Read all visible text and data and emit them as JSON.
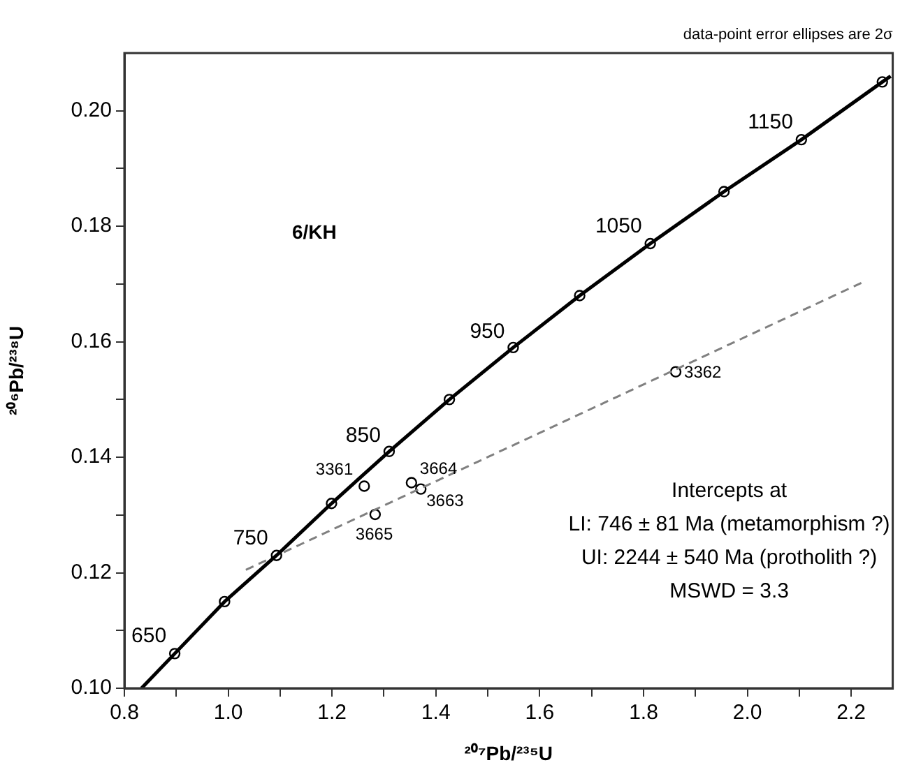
{
  "chart_data": {
    "type": "line",
    "xlabel": "²⁰⁷Pb/²³⁵U",
    "ylabel": "²⁰⁶Pb/²³⁸U",
    "xlim": [
      0.8,
      2.28
    ],
    "ylim": [
      0.1,
      0.21
    ],
    "xticks": [
      {
        "value": 0.8,
        "label": "0.8"
      },
      {
        "value": 0.9,
        "label": null
      },
      {
        "value": 1.0,
        "label": "1.0"
      },
      {
        "value": 1.1,
        "label": null
      },
      {
        "value": 1.2,
        "label": "1.2"
      },
      {
        "value": 1.3,
        "label": null
      },
      {
        "value": 1.4,
        "label": "1.4"
      },
      {
        "value": 1.5,
        "label": null
      },
      {
        "value": 1.6,
        "label": "1.6"
      },
      {
        "value": 1.7,
        "label": null
      },
      {
        "value": 1.8,
        "label": "1.8"
      },
      {
        "value": 1.9,
        "label": null
      },
      {
        "value": 2.0,
        "label": "2.0"
      },
      {
        "value": 2.1,
        "label": null
      },
      {
        "value": 2.2,
        "label": "2.2"
      }
    ],
    "yticks": [
      {
        "value": 0.1,
        "label": "0.10"
      },
      {
        "value": 0.11,
        "label": null
      },
      {
        "value": 0.12,
        "label": "0.12"
      },
      {
        "value": 0.13,
        "label": null
      },
      {
        "value": 0.14,
        "label": "0.14"
      },
      {
        "value": 0.15,
        "label": null
      },
      {
        "value": 0.16,
        "label": "0.16"
      },
      {
        "value": 0.17,
        "label": null
      },
      {
        "value": 0.18,
        "label": "0.18"
      },
      {
        "value": 0.19,
        "label": null
      },
      {
        "value": 0.2,
        "label": "0.20"
      }
    ],
    "grid": false,
    "legend": false,
    "series": [
      {
        "type": "line",
        "color": "#000000",
        "marker": "none",
        "line_style": "solid",
        "x": [
          0.833,
          0.897,
          0.993,
          1.093,
          1.199,
          1.31,
          1.426,
          1.549,
          1.677,
          1.813,
          1.955,
          2.104,
          2.26,
          2.276
        ],
        "values": [
          0.1,
          0.106,
          0.115,
          0.123,
          0.132,
          0.141,
          0.15,
          0.159,
          0.168,
          0.177,
          0.186,
          0.195,
          0.205,
          0.206
        ]
      },
      {
        "type": "scatter",
        "color": "#000000",
        "marker": "circle",
        "x": [
          0.897,
          0.993,
          1.093,
          1.199,
          1.31,
          1.426,
          1.549,
          1.677,
          1.813,
          1.955,
          2.104,
          2.26
        ],
        "values": [
          0.106,
          0.115,
          0.123,
          0.132,
          0.141,
          0.15,
          0.159,
          0.168,
          0.177,
          0.186,
          0.195,
          0.205
        ]
      },
      {
        "type": "line",
        "color": "#808080",
        "marker": "none",
        "line_style": "dashed",
        "x": [
          1.034,
          2.222
        ],
        "values": [
          0.1205,
          0.1703
        ]
      },
      {
        "type": "scatter",
        "color": "#000000",
        "marker": "circle",
        "x": [
          1.262,
          1.862,
          1.371,
          1.353,
          1.283
        ],
        "values": [
          0.135,
          0.1548,
          0.1345,
          0.1356,
          0.1301
        ]
      }
    ],
    "annotations": [
      "data-point error ellipses are 2σ",
      "6/KH",
      "Intercepts at\nLI: 746 ± 81 Ma (metamorphism ?)\nUI: 2244 ± 540 Ma (protholith ?)\nMSWD = 3.3",
      {
        "text": "650",
        "x": 0.897,
        "y": 0.106
      },
      {
        "text": "750",
        "x": 1.093,
        "y": 0.123
      },
      {
        "text": "850",
        "x": 1.31,
        "y": 0.141
      },
      {
        "text": "950",
        "x": 1.549,
        "y": 0.159
      },
      {
        "text": "1050",
        "x": 1.813,
        "y": 0.177
      },
      {
        "text": "1150",
        "x": 2.104,
        "y": 0.195
      },
      {
        "text": "3361",
        "x": 1.262,
        "y": 0.135
      },
      {
        "text": "3362",
        "x": 1.862,
        "y": 0.1548
      },
      {
        "text": "3663",
        "x": 1.371,
        "y": 0.1345
      },
      {
        "text": "3664",
        "x": 1.353,
        "y": 0.1356
      },
      {
        "text": "3665",
        "x": 1.283,
        "y": 0.1301
      }
    ]
  }
}
